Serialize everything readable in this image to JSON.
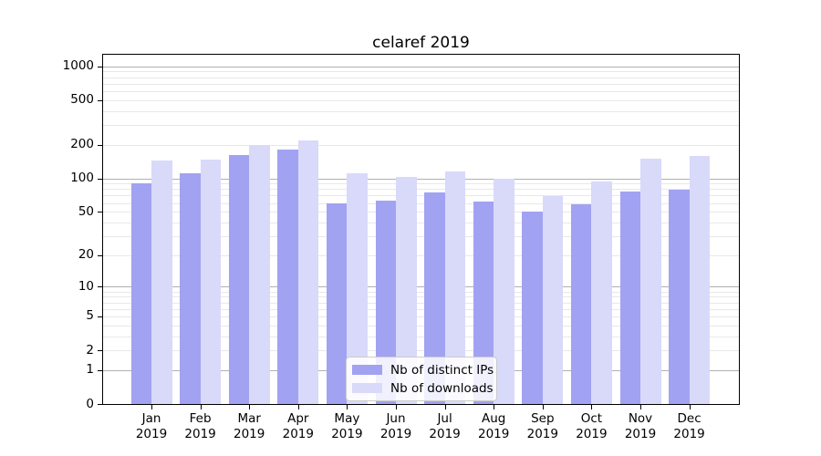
{
  "chart_data": {
    "type": "bar",
    "title": "celaref 2019",
    "categories": [
      "Jan",
      "Feb",
      "Mar",
      "Apr",
      "May",
      "Jun",
      "Jul",
      "Aug",
      "Sep",
      "Oct",
      "Nov",
      "Dec"
    ],
    "category_year": "2019",
    "series": [
      {
        "name": "Nb of distinct IPs",
        "color": "#a2a2f2",
        "values": [
          90,
          111,
          162,
          180,
          60,
          63,
          75,
          62,
          50,
          58,
          76,
          79
        ]
      },
      {
        "name": "Nb of downloads",
        "color": "#d9d9fa",
        "values": [
          145,
          148,
          200,
          219,
          110,
          103,
          115,
          100,
          69,
          93,
          150,
          160
        ]
      }
    ],
    "xlabel": "",
    "ylabel": "",
    "yscale": "log1p",
    "ylim": [
      0,
      1260
    ],
    "yticks": [
      0,
      1,
      2,
      5,
      10,
      20,
      50,
      100,
      200,
      500,
      1000
    ],
    "grid": {
      "major_ticks": [
        1,
        10,
        100,
        1000
      ],
      "major_color": "#b0b0b0",
      "minor_color": "#e8e8e8"
    },
    "legend": {
      "location": "lower center"
    }
  }
}
